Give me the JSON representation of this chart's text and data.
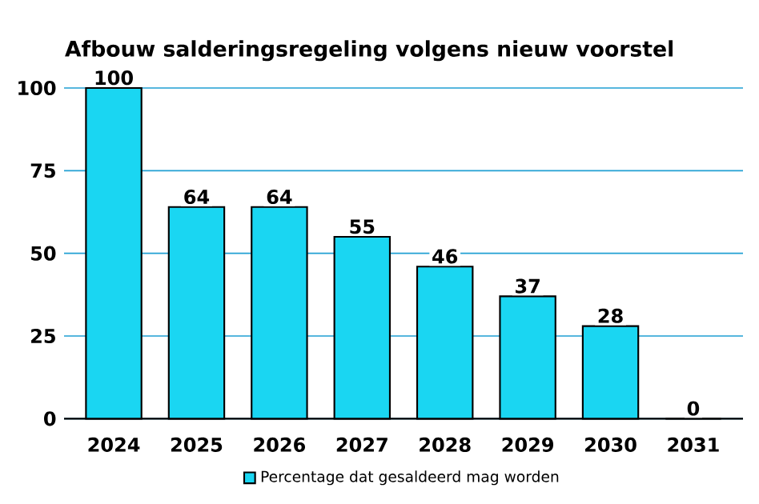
{
  "chart_data": {
    "type": "bar",
    "title": "Afbouw salderingsregeling volgens nieuw voorstel",
    "categories": [
      "2024",
      "2025",
      "2026",
      "2027",
      "2028",
      "2029",
      "2030",
      "2031"
    ],
    "series": [
      {
        "name": "Percentage dat gesaldeerd mag worden",
        "color": "#1ad6f2",
        "values": [
          100,
          64,
          64,
          55,
          46,
          37,
          28,
          0
        ]
      }
    ],
    "ylim": [
      0,
      100
    ],
    "yticks": [
      0,
      25,
      50,
      75,
      100
    ],
    "grid": "y",
    "legend": "bottom",
    "data_labels": true
  }
}
